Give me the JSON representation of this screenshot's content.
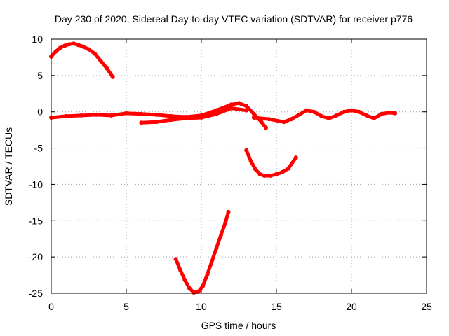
{
  "chart_data": {
    "type": "scatter",
    "title": "Day 230 of 2020, Sidereal Day-to-day VTEC variation (SDTVAR) for receiver p776",
    "xlabel": "GPS time / hours",
    "ylabel": "SDTVAR / TECUs",
    "xlim": [
      0,
      25
    ],
    "ylim": [
      -25,
      10
    ],
    "xticks": [
      0,
      5,
      10,
      15,
      20,
      25
    ],
    "yticks": [
      10,
      5,
      0,
      -5,
      -10,
      -15,
      -20,
      -25
    ],
    "grid": true,
    "series_color": "#ff0000",
    "series": [
      {
        "name": "arc-early-positive",
        "x": [
          0.0,
          0.3,
          0.6,
          0.9,
          1.2,
          1.5,
          1.8,
          2.1,
          2.5,
          2.9,
          3.3,
          3.7,
          4.1
        ],
        "y": [
          7.6,
          8.3,
          8.8,
          9.1,
          9.3,
          9.4,
          9.2,
          9.0,
          8.6,
          8.0,
          7.0,
          6.0,
          4.8
        ]
      },
      {
        "name": "arc-near-zero-long",
        "x": [
          0.0,
          1.0,
          2.0,
          3.0,
          4.0,
          5.0,
          6.0,
          7.0,
          8.0,
          9.0,
          10.0,
          11.0,
          12.0,
          12.5,
          13.0,
          13.5,
          14.0,
          14.3
        ],
        "y": [
          -0.8,
          -0.6,
          -0.5,
          -0.4,
          -0.5,
          -0.2,
          -0.3,
          -0.4,
          -0.6,
          -0.7,
          -0.5,
          0.2,
          1.0,
          1.2,
          0.8,
          -0.3,
          -1.4,
          -2.2
        ]
      },
      {
        "name": "arc-near-zero-middle",
        "x": [
          6.0,
          7.0,
          8.0,
          9.0,
          10.0,
          11.0,
          12.0,
          13.0
        ],
        "y": [
          -1.5,
          -1.4,
          -1.1,
          -0.9,
          -0.8,
          -0.3,
          0.5,
          0.2
        ]
      },
      {
        "name": "arc-near-zero-late",
        "x": [
          13.5,
          14.5,
          15.5,
          16.0,
          16.5,
          17.0,
          17.5,
          18.0,
          18.5,
          19.0,
          19.5,
          20.0,
          20.5,
          21.0,
          21.5,
          22.0,
          22.5,
          22.9
        ],
        "y": [
          -0.8,
          -1.0,
          -1.4,
          -1.0,
          -0.4,
          0.2,
          0.0,
          -0.6,
          -0.9,
          -0.5,
          0.0,
          0.2,
          0.0,
          -0.5,
          -0.9,
          -0.3,
          -0.1,
          -0.2
        ]
      },
      {
        "name": "arc-negative-dip",
        "x": [
          13.0,
          13.3,
          13.6,
          13.9,
          14.2,
          14.6,
          15.0,
          15.4,
          15.8,
          16.3
        ],
        "y": [
          -5.3,
          -6.8,
          -7.9,
          -8.6,
          -8.8,
          -8.8,
          -8.6,
          -8.3,
          -7.8,
          -6.3
        ]
      },
      {
        "name": "arc-deep-negative",
        "x": [
          8.3,
          8.6,
          8.9,
          9.2,
          9.5,
          9.8,
          10.1,
          10.4,
          10.7,
          11.0,
          11.3,
          11.6,
          11.8
        ],
        "y": [
          -20.3,
          -21.8,
          -23.2,
          -24.3,
          -24.9,
          -24.8,
          -24.0,
          -22.4,
          -20.6,
          -18.8,
          -17.0,
          -15.3,
          -13.8
        ]
      }
    ]
  }
}
